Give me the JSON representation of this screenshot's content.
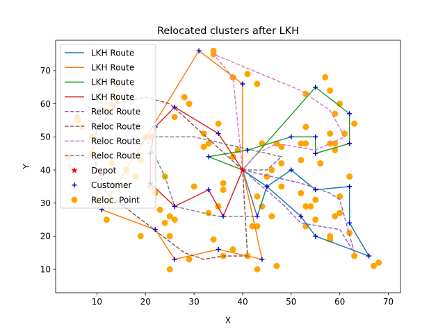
{
  "chart_data": {
    "type": "scatter",
    "title": "Relocated clusters after LKH",
    "xlabel": "X",
    "ylabel": "Y",
    "xlim": [
      1.5,
      72.5
    ],
    "ylim": [
      2.9,
      79.2
    ],
    "xticks": [
      10,
      20,
      30,
      40,
      50,
      60,
      70
    ],
    "yticks": [
      10,
      20,
      30,
      40,
      50,
      60,
      70
    ],
    "grid": false,
    "legend_position": "upper-left",
    "depot": {
      "name": "Depot",
      "color": "#ff0000",
      "point": [
        40,
        40
      ]
    },
    "lkh_routes": [
      {
        "name": "LKH Route",
        "color": "#1f77b4",
        "points": [
          [
            40,
            40
          ],
          [
            45,
            35
          ],
          [
            50,
            40
          ],
          [
            55,
            34
          ],
          [
            62,
            35
          ],
          [
            62,
            24
          ],
          [
            66,
            14
          ],
          [
            55,
            20
          ],
          [
            52,
            26
          ],
          [
            45,
            35
          ],
          [
            43,
            26
          ],
          [
            40,
            40
          ]
        ]
      },
      {
        "name": "LKH Route",
        "color": "#ff7f0e",
        "points": [
          [
            40,
            40
          ],
          [
            40,
            66
          ],
          [
            31,
            76
          ],
          [
            11,
            28
          ],
          [
            22,
            22
          ],
          [
            26,
            13
          ],
          [
            35,
            16
          ],
          [
            44,
            13
          ],
          [
            40,
            40
          ]
        ]
      },
      {
        "name": "LKH Route",
        "color": "#2ca02c",
        "points": [
          [
            40,
            40
          ],
          [
            55,
            65
          ],
          [
            62,
            57
          ],
          [
            62,
            48
          ],
          [
            55,
            45
          ],
          [
            55,
            50
          ],
          [
            50,
            50
          ],
          [
            41,
            46
          ],
          [
            33,
            44
          ],
          [
            40,
            40
          ]
        ]
      },
      {
        "name": "LKH Route",
        "color": "#d62728",
        "points": [
          [
            40,
            40
          ],
          [
            35,
            51
          ],
          [
            26,
            59
          ],
          [
            22,
            53
          ],
          [
            21,
            45
          ],
          [
            21,
            36
          ],
          [
            26,
            29
          ],
          [
            33,
            34
          ],
          [
            36,
            26
          ],
          [
            40,
            40
          ]
        ]
      }
    ],
    "reloc_routes": [
      {
        "name": "Reloc Route",
        "color": "#9467bd",
        "points": [
          [
            40,
            40
          ],
          [
            52,
            36
          ],
          [
            58,
            33
          ],
          [
            60,
            31
          ],
          [
            63,
            15
          ],
          [
            60,
            22
          ],
          [
            52,
            24
          ],
          [
            48,
            30
          ],
          [
            40,
            40
          ]
        ]
      },
      {
        "name": "Reloc Route",
        "color": "#8c564b",
        "points": [
          [
            40,
            40
          ],
          [
            25,
            60
          ],
          [
            20,
            62
          ],
          [
            14,
            60
          ],
          [
            10,
            52
          ],
          [
            9,
            45
          ],
          [
            12,
            33
          ],
          [
            20,
            24
          ],
          [
            28,
            15
          ],
          [
            32,
            13
          ],
          [
            36,
            14
          ],
          [
            41,
            14
          ],
          [
            40,
            40
          ]
        ]
      },
      {
        "name": "Reloc Route",
        "color": "#e377c2",
        "points": [
          [
            40,
            40
          ],
          [
            38,
            68
          ],
          [
            34,
            75
          ],
          [
            52,
            64
          ],
          [
            58,
            58
          ],
          [
            61,
            50
          ],
          [
            55,
            46
          ],
          [
            47,
            48
          ],
          [
            43,
            45
          ],
          [
            40,
            40
          ]
        ]
      },
      {
        "name": "Reloc Route",
        "color": "#7f7f7f",
        "points": [
          [
            40,
            40
          ],
          [
            45,
            40
          ],
          [
            48,
            44
          ],
          [
            42,
            46
          ],
          [
            30,
            50
          ],
          [
            20,
            50
          ],
          [
            24,
            38
          ],
          [
            26,
            29
          ],
          [
            35,
            26
          ],
          [
            43,
            26
          ],
          [
            40,
            40
          ]
        ]
      }
    ],
    "customers": {
      "name": "Customer",
      "color": "#0000cc",
      "points": [
        [
          31,
          76
        ],
        [
          40,
          66
        ],
        [
          55,
          65
        ],
        [
          62,
          57
        ],
        [
          62,
          48
        ],
        [
          55,
          45
        ],
        [
          55,
          50
        ],
        [
          50,
          50
        ],
        [
          41,
          46
        ],
        [
          33,
          44
        ],
        [
          35,
          51
        ],
        [
          26,
          59
        ],
        [
          22,
          53
        ],
        [
          21,
          45
        ],
        [
          21,
          36
        ],
        [
          26,
          29
        ],
        [
          33,
          34
        ],
        [
          36,
          26
        ],
        [
          43,
          26
        ],
        [
          45,
          35
        ],
        [
          50,
          40
        ],
        [
          55,
          34
        ],
        [
          62,
          35
        ],
        [
          62,
          24
        ],
        [
          66,
          14
        ],
        [
          55,
          20
        ],
        [
          52,
          26
        ],
        [
          11,
          28
        ],
        [
          22,
          22
        ],
        [
          26,
          13
        ],
        [
          35,
          16
        ],
        [
          44,
          13
        ]
      ]
    },
    "reloc_points": {
      "name": "Reloc. Point",
      "color": "#ffa500",
      "points": [
        [
          34,
          76
        ],
        [
          34,
          75
        ],
        [
          38,
          68
        ],
        [
          41,
          69
        ],
        [
          43,
          66
        ],
        [
          57,
          68
        ],
        [
          58,
          64
        ],
        [
          53,
          63
        ],
        [
          60,
          60
        ],
        [
          59,
          57
        ],
        [
          61,
          51
        ],
        [
          63,
          54
        ],
        [
          58,
          51
        ],
        [
          58,
          48
        ],
        [
          59,
          48
        ],
        [
          59,
          46
        ],
        [
          53,
          53
        ],
        [
          53,
          48
        ],
        [
          52,
          48
        ],
        [
          52,
          43
        ],
        [
          56,
          42
        ],
        [
          48,
          42
        ],
        [
          44,
          48
        ],
        [
          47,
          48
        ],
        [
          48,
          47
        ],
        [
          46,
          40
        ],
        [
          45,
          38
        ],
        [
          43,
          32
        ],
        [
          44,
          29
        ],
        [
          42,
          23
        ],
        [
          43,
          23
        ],
        [
          46,
          26
        ],
        [
          48,
          35
        ],
        [
          52,
          33
        ],
        [
          55,
          31
        ],
        [
          53,
          29
        ],
        [
          54,
          29
        ],
        [
          53,
          23
        ],
        [
          55,
          25
        ],
        [
          58,
          20
        ],
        [
          58,
          19
        ],
        [
          60,
          32
        ],
        [
          59,
          26
        ],
        [
          60,
          27
        ],
        [
          62,
          38
        ],
        [
          62,
          21
        ],
        [
          63,
          14
        ],
        [
          67,
          11
        ],
        [
          68,
          12
        ],
        [
          47,
          11
        ],
        [
          43,
          10
        ],
        [
          41,
          14
        ],
        [
          38,
          16
        ],
        [
          36,
          14
        ],
        [
          34,
          19
        ],
        [
          33,
          27
        ],
        [
          35,
          29
        ],
        [
          36,
          34
        ],
        [
          36,
          36
        ],
        [
          39,
          46
        ],
        [
          38,
          44
        ],
        [
          32,
          47
        ],
        [
          32,
          51
        ],
        [
          33,
          48
        ],
        [
          35,
          54
        ],
        [
          26,
          56
        ],
        [
          28,
          62
        ],
        [
          29,
          60
        ],
        [
          14,
          62
        ],
        [
          14,
          66
        ],
        [
          13,
          60
        ],
        [
          12,
          58
        ],
        [
          6,
          56
        ],
        [
          6,
          55
        ],
        [
          7,
          53
        ],
        [
          9,
          50
        ],
        [
          9,
          45
        ],
        [
          4,
          44
        ],
        [
          19,
          43
        ],
        [
          16,
          40
        ],
        [
          18,
          38
        ],
        [
          13,
          42
        ],
        [
          10,
          31
        ],
        [
          13,
          31
        ],
        [
          12,
          25
        ],
        [
          19,
          20
        ],
        [
          22,
          33
        ],
        [
          21,
          35
        ],
        [
          23,
          28
        ],
        [
          24,
          24
        ],
        [
          25,
          26
        ],
        [
          26,
          25
        ],
        [
          25,
          20
        ],
        [
          25,
          10
        ],
        [
          29,
          13
        ],
        [
          30,
          35
        ],
        [
          24,
          38
        ],
        [
          20,
          50
        ],
        [
          21,
          50
        ]
      ]
    },
    "legend": [
      {
        "label": "LKH Route",
        "style": "solid",
        "color": "#1f77b4"
      },
      {
        "label": "LKH Route",
        "style": "solid",
        "color": "#ff7f0e"
      },
      {
        "label": "LKH Route",
        "style": "solid",
        "color": "#2ca02c"
      },
      {
        "label": "LKH Route",
        "style": "solid",
        "color": "#d62728"
      },
      {
        "label": "Reloc Route",
        "style": "dashed",
        "color": "#9467bd"
      },
      {
        "label": "Reloc Route",
        "style": "dashed",
        "color": "#8c564b"
      },
      {
        "label": "Reloc Route",
        "style": "dashed",
        "color": "#e377c2"
      },
      {
        "label": "Reloc Route",
        "style": "dashed",
        "color": "#7f7f7f"
      },
      {
        "label": "Depot",
        "style": "star",
        "color": "#ff0000"
      },
      {
        "label": "Customer",
        "style": "plus",
        "color": "#0000cc"
      },
      {
        "label": "Reloc. Point",
        "style": "circle",
        "color": "#ffa500"
      }
    ]
  }
}
